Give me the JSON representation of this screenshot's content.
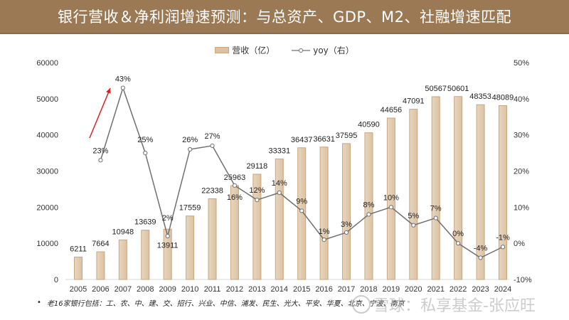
{
  "header": {
    "title": "银行营收＆净利润增速预测：与总资产、GDP、M2、社融增速匹配"
  },
  "legend": {
    "bar_label": "营收（亿）",
    "line_label": "yoy（右）"
  },
  "colors": {
    "header_bg": "#9b7955",
    "bar_fill": "#dcc2a2",
    "bar_stroke": "#c8a67e",
    "line": "#707070",
    "arrow": "#e02020"
  },
  "footnote": {
    "bullet": "•",
    "text": "老16家银行包括：工、农、中、建、交、招行、兴业、中信、浦发、民生、光大、平安、华夏、北京、宁波、南京"
  },
  "watermark": {
    "text": "雪球：私享基金-张应旺"
  },
  "chart_data": {
    "type": "bar",
    "title": "银行营收＆净利润增速预测：与总资产、GDP、M2、社融增速匹配",
    "categories": [
      "2005",
      "2006",
      "2007",
      "2008",
      "2009",
      "2010",
      "2011",
      "2012",
      "2013",
      "2014",
      "2015",
      "2016",
      "2017",
      "2018",
      "2019",
      "2020",
      "2021",
      "2022",
      "2023",
      "2024"
    ],
    "series": [
      {
        "name": "营收（亿）",
        "type": "bar",
        "axis": "left",
        "values": [
          6211,
          7664,
          10948,
          13639,
          13911,
          17559,
          22338,
          25963,
          29118,
          33331,
          36437,
          36631,
          37595,
          40590,
          44656,
          47091,
          50567,
          50601,
          48353,
          48089
        ],
        "labels": [
          "6211",
          "7664",
          "10948",
          "13639",
          "13911",
          "17559",
          "22338",
          "25963",
          "29118",
          "33331",
          "36437",
          "36631",
          "37595",
          "40590",
          "44656",
          "47091",
          "50567",
          "50601",
          "48353",
          "48089"
        ]
      },
      {
        "name": "yoy（右）",
        "type": "line",
        "axis": "right",
        "values": [
          null,
          23,
          43,
          25,
          2,
          26,
          27,
          16,
          12,
          14,
          9,
          1,
          3,
          8,
          10,
          5,
          7,
          0,
          -4,
          -1
        ],
        "labels": [
          null,
          "23%",
          "43%",
          "25%",
          "2%",
          "26%",
          "27%",
          "16%",
          "12%",
          "14%",
          "9%",
          "1%",
          "3%",
          "8%",
          "10%",
          "5%",
          "7%",
          "0%",
          "-4%",
          "-1%"
        ]
      }
    ],
    "y_left": {
      "range": [
        0,
        60000
      ],
      "ticks": [
        "0",
        "10000",
        "20000",
        "30000",
        "40000",
        "50000",
        "60000"
      ]
    },
    "y_right": {
      "range": [
        -10,
        50
      ],
      "ticks": [
        "-10%",
        "0%",
        "10%",
        "20%",
        "30%",
        "40%",
        "50%"
      ]
    },
    "annotations": [
      {
        "type": "arrow",
        "color": "red",
        "description": "upward arrow near 2006-2007 rise"
      }
    ],
    "grid": false,
    "legend_position": "top-center"
  }
}
